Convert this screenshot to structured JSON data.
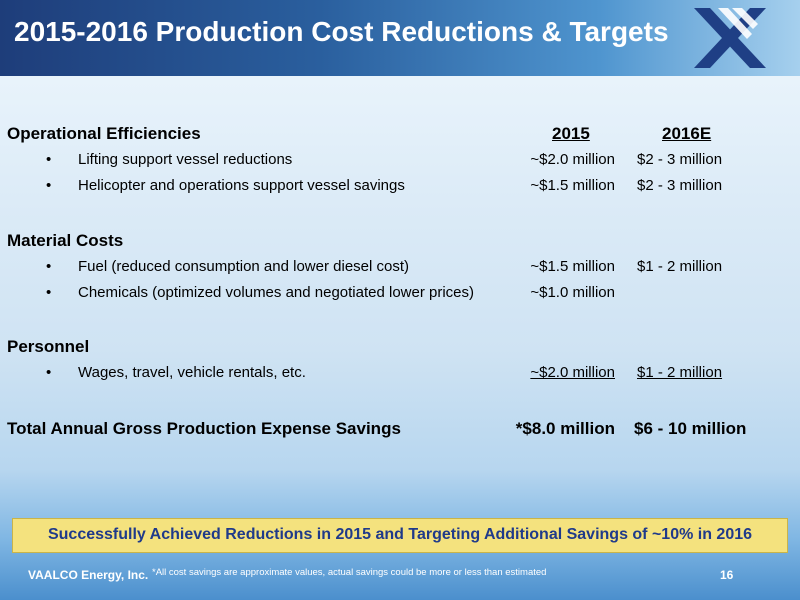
{
  "header": {
    "title": "2015-2016 Production Cost Reductions & Targets",
    "logo_icon": "vaalco-x-logo-icon"
  },
  "table": {
    "col_2015": "2015",
    "col_2016": "2016E",
    "sections": [
      {
        "title": "Operational Efficiencies",
        "rows": [
          {
            "bullet": "•",
            "label": "Lifting support vessel reductions",
            "v2015": "~$2.0 million",
            "v2016": "$2 - 3 million"
          },
          {
            "bullet": "•",
            "label": "Helicopter and operations support vessel savings",
            "v2015": "~$1.5 million",
            "v2016": "$2 - 3 million"
          }
        ]
      },
      {
        "title": "Material Costs",
        "rows": [
          {
            "bullet": "•",
            "label": "Fuel (reduced consumption and lower diesel cost)",
            "v2015": "~$1.5 million",
            "v2016": "$1 - 2 million"
          },
          {
            "bullet": "•",
            "label": "Chemicals (optimized volumes and negotiated lower prices)",
            "v2015": "~$1.0 million",
            "v2016": ""
          }
        ]
      },
      {
        "title": "Personnel",
        "rows": [
          {
            "bullet": "•",
            "label": "Wages, travel, vehicle rentals, etc.",
            "v2015": "~$2.0 million",
            "v2016": "$1 - 2 million"
          }
        ]
      }
    ],
    "total": {
      "label": "Total Annual Gross Production Expense Savings",
      "v2015": "*$8.0 million",
      "v2016": "$6 - 10 million"
    }
  },
  "banner": "Successfully Achieved Reductions in 2015 and Targeting Additional Savings of ~10% in 2016",
  "footer": {
    "company": "VAALCO Energy, Inc.",
    "note": "*All cost savings are approximate values, actual savings could be more or less than estimated",
    "page": "16"
  },
  "colors": {
    "header_dark": "#1e3d7a",
    "banner_bg": "#f4e27e",
    "banner_text": "#1f3a8a"
  }
}
